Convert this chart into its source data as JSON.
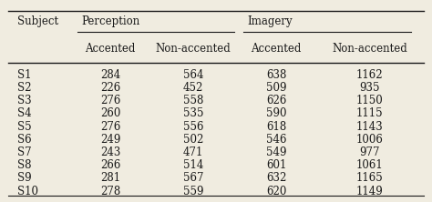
{
  "subjects": [
    "S1",
    "S2",
    "S3",
    "S4",
    "S5",
    "S6",
    "S7",
    "S8",
    "S9",
    "S10"
  ],
  "perception_accented": [
    284,
    226,
    276,
    260,
    276,
    249,
    243,
    266,
    281,
    278
  ],
  "perception_nonaccented": [
    564,
    452,
    558,
    535,
    556,
    502,
    471,
    514,
    567,
    559
  ],
  "imagery_accented": [
    638,
    509,
    626,
    590,
    618,
    546,
    549,
    601,
    632,
    620
  ],
  "imagery_nonaccented": [
    1162,
    935,
    1150,
    1115,
    1143,
    1006,
    977,
    1061,
    1165,
    1149
  ],
  "header1_subject": "Subject",
  "header1_perception": "Perception",
  "header1_imagery": "Imagery",
  "header2_accented": "Accented",
  "header2_nonaccented": "Non-accented",
  "bg_color": "#f0ece0",
  "text_color": "#1a1a1a",
  "font_size": 8.5
}
